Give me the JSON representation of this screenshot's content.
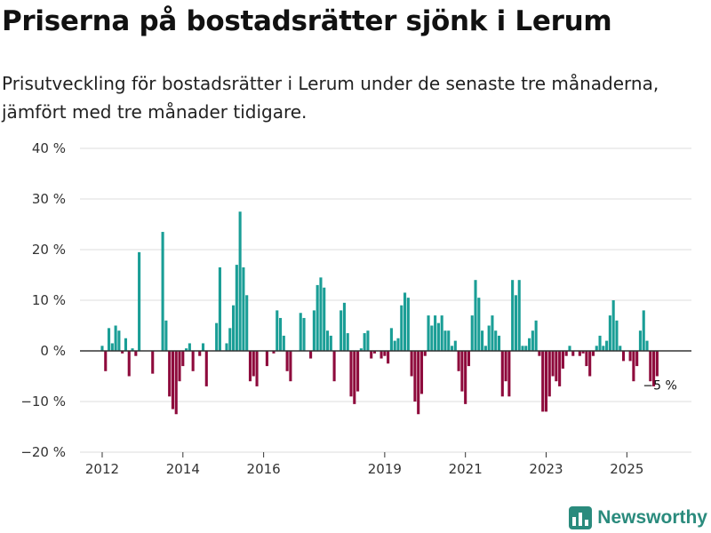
{
  "title": "Priserna på bostadsrätter sjönk i Lerum",
  "subtitle": "Prisutveckling för bostadsrätter i Lerum under de senaste tre månaderna, jämfört med tre månader tidigare.",
  "brand": {
    "name": "Newsworthy",
    "icon": "newsworthy-logo-icon",
    "color": "#2a8b7d"
  },
  "colors": {
    "positive": "#1a9e96",
    "negative": "#8e0a3c",
    "grid": "#dddddd",
    "zero": "#333333"
  },
  "chart_data": {
    "type": "bar",
    "title": "Priserna på bostadsrätter sjönk i Lerum",
    "xlabel": "",
    "ylabel": "",
    "unit": "%",
    "ylim": [
      -20,
      40
    ],
    "yticks": [
      40,
      30,
      20,
      10,
      0,
      -10,
      -20
    ],
    "ytick_labels": [
      "40 %",
      "30 %",
      "20 %",
      "10 %",
      "0 %",
      "−10 %",
      "−20 %"
    ],
    "xlim_years": [
      2011.45,
      2026.6
    ],
    "xticks": [
      2012,
      2014,
      2016,
      2019,
      2021,
      2023,
      2025
    ],
    "xtick_labels": [
      "2012",
      "2014",
      "2016",
      "2019",
      "2021",
      "2023",
      "2025"
    ],
    "last_value_label": "−5 %",
    "series": [
      {
        "name": "Prisutveckling",
        "start_year": 2012.0,
        "step_years": 0.08333,
        "values": [
          1,
          -4,
          4.5,
          1.5,
          5,
          4,
          -0.5,
          2.5,
          -5,
          0.5,
          -1,
          19.5,
          0,
          0,
          0,
          -4.5,
          0,
          0,
          23.5,
          6,
          -9,
          -11.5,
          -12.5,
          -6,
          -3,
          0.5,
          1.5,
          -4,
          0,
          -1,
          1.5,
          -7,
          0,
          0,
          5.5,
          16.5,
          0,
          1.5,
          4.5,
          9,
          17,
          27.5,
          16.5,
          11,
          -6,
          -5,
          -7,
          0,
          0,
          -3,
          0,
          -0.5,
          8,
          6.5,
          3,
          -4,
          -6,
          0,
          0,
          7.5,
          6.5,
          0,
          -1.5,
          8,
          13,
          14.5,
          12.5,
          4,
          3,
          -6,
          0,
          8,
          9.5,
          3.5,
          -9,
          -10.5,
          -8,
          0.5,
          3.5,
          4,
          -1.5,
          -0.5,
          0,
          -1.5,
          -1,
          -2.5,
          4.5,
          2,
          2.5,
          9,
          11.5,
          10.5,
          -5,
          -10,
          -12.5,
          -8.5,
          -1,
          7,
          5,
          7,
          5.5,
          7,
          4,
          4,
          1,
          2,
          -4,
          -8,
          -10.5,
          -3,
          7,
          14,
          10.5,
          4,
          1,
          5,
          7,
          4,
          3,
          -9,
          -6,
          -9,
          14,
          11,
          14,
          1,
          1,
          2.5,
          4,
          6,
          -1,
          -12,
          -12,
          -9,
          -5,
          -6,
          -7,
          -3.5,
          -1,
          1,
          -1,
          0,
          -1,
          -0.5,
          -3,
          -5,
          -1,
          1,
          3,
          1,
          2,
          7,
          10,
          6,
          1,
          -2,
          0,
          -2,
          -6,
          -3,
          4,
          8,
          2,
          -6,
          -7,
          -5
        ]
      }
    ]
  }
}
